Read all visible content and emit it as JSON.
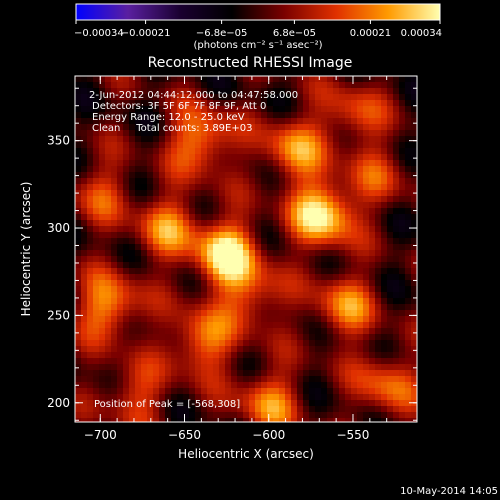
{
  "chart_data": {
    "type": "heatmap",
    "title": "Reconstructed RHESSI Image",
    "xlabel": "Heliocentric X (arcsec)",
    "ylabel": "Heliocentric Y (arcsec)",
    "xlim": [
      -715,
      -512
    ],
    "ylim": [
      189,
      387
    ],
    "xticks": [
      -700,
      -650,
      -600,
      -550
    ],
    "xtick_labels": [
      "−700",
      "−650",
      "−600",
      "−550"
    ],
    "yticks": [
      200,
      250,
      300,
      350
    ],
    "ytick_labels": [
      "200",
      "250",
      "300",
      "350"
    ],
    "colorbar": {
      "min": -0.00034,
      "max": 0.00034,
      "ticks": [
        -0.00034,
        -0.00021,
        -6.8e-05,
        6.8e-05,
        0.00021,
        0.00034
      ],
      "tick_labels": [
        "−0.00034",
        "−0.00021",
        "−6.8e−05",
        "6.8e−05",
        "0.00021",
        "0.00034"
      ],
      "unit_text": "(photons cm⁻² s⁻¹ asec⁻²)",
      "colors": [
        "#0000ff",
        "#5a1fa0",
        "#1a0030",
        "#000000",
        "#7a0000",
        "#e03000",
        "#ff9a00",
        "#ffffb0"
      ]
    },
    "annotations": [
      "2-Jun-2012 04:44:12.000 to 04:47:58.000",
      "Detectors: 3F 5F 6F 7F 8F 9F, Att 0",
      "Energy Range: 12.0 - 25.0 keV",
      "Clean     Total counts: 3.89E+03",
      "Position of Peak = [-568,308]"
    ],
    "peak": [
      -568,
      308
    ],
    "sources": [
      {
        "x": -625,
        "y": 285,
        "amp": 1.0
      },
      {
        "x": -568,
        "y": 308,
        "amp": 1.0
      },
      {
        "x": -640,
        "y": 350,
        "amp": 0.7
      },
      {
        "x": -585,
        "y": 345,
        "amp": 0.65
      },
      {
        "x": -660,
        "y": 300,
        "amp": 0.6
      },
      {
        "x": -695,
        "y": 255,
        "amp": 0.7
      },
      {
        "x": -640,
        "y": 235,
        "amp": 0.65
      },
      {
        "x": -600,
        "y": 200,
        "amp": 0.6
      },
      {
        "x": -555,
        "y": 255,
        "amp": 0.6
      },
      {
        "x": -530,
        "y": 210,
        "amp": 0.55
      },
      {
        "x": -610,
        "y": 260,
        "amp": 0.5
      },
      {
        "x": -550,
        "y": 365,
        "amp": 0.45
      },
      {
        "x": -700,
        "y": 320,
        "amp": 0.4
      },
      {
        "x": -680,
        "y": 205,
        "amp": 0.45
      },
      {
        "x": -535,
        "y": 330,
        "amp": 0.35
      }
    ]
  },
  "footer": {
    "date": "10-May-2014 14:05"
  }
}
